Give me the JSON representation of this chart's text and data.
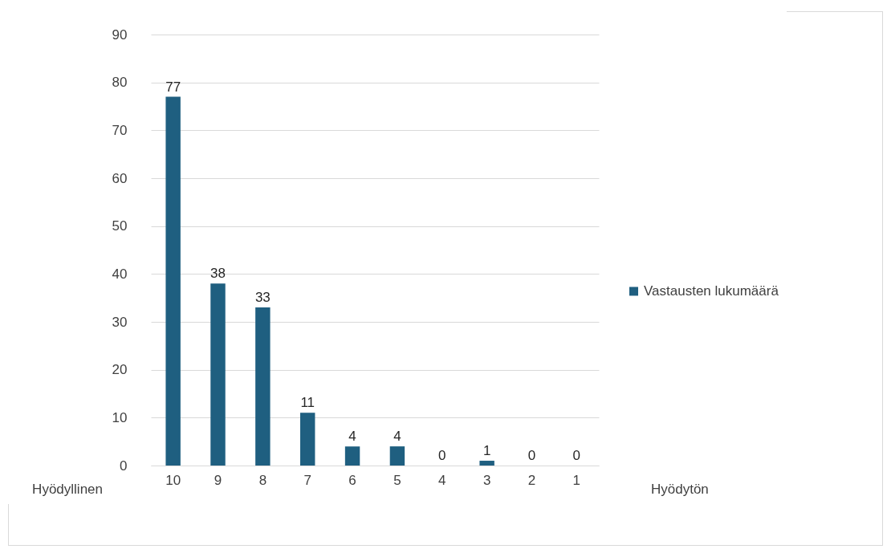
{
  "chart_data": {
    "type": "bar",
    "categories": [
      "10",
      "9",
      "8",
      "7",
      "6",
      "5",
      "4",
      "3",
      "2",
      "1"
    ],
    "series": [
      {
        "name": "Vastausten lukumäärä",
        "color": "#1f5f80",
        "values": [
          77,
          38,
          33,
          11,
          4,
          4,
          0,
          1,
          0,
          0
        ]
      }
    ],
    "ylim": [
      0,
      90
    ],
    "yticks": [
      0,
      10,
      20,
      30,
      40,
      50,
      60,
      70,
      80,
      90
    ],
    "grid": "y",
    "legend": "right",
    "data_labels": true,
    "annotations": [
      "Hyödyllinen",
      "Hyödytön"
    ]
  }
}
